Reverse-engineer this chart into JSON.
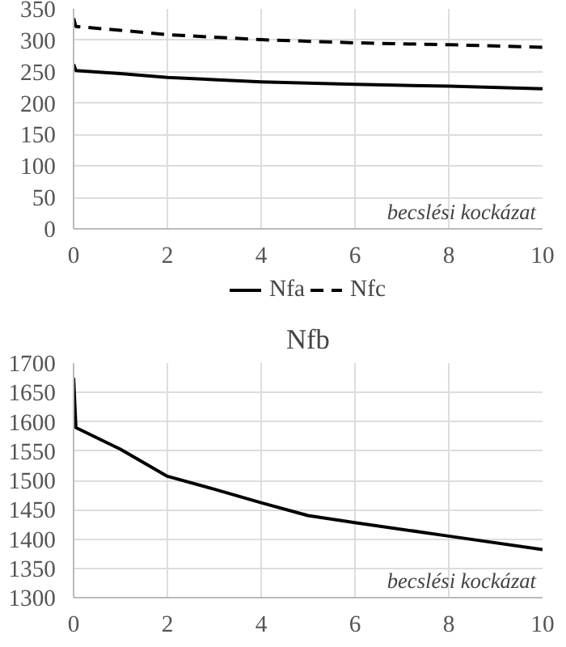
{
  "chart_data": [
    {
      "type": "line",
      "xlabel": "becslési kockázat",
      "xlim": [
        0,
        10
      ],
      "xticks": [
        0,
        2,
        4,
        6,
        8,
        10
      ],
      "ylim": [
        0,
        350
      ],
      "yticks": [
        0,
        50,
        100,
        150,
        200,
        250,
        300,
        350
      ],
      "grid": true,
      "legend": "bottom",
      "series": [
        {
          "name": "Nfa",
          "color": "#000000",
          "line_style": "solid",
          "x": [
            0,
            0.05,
            1,
            2,
            4,
            5,
            6,
            8,
            10
          ],
          "values": [
            262,
            252,
            247,
            241,
            234,
            232,
            230,
            227,
            223
          ]
        },
        {
          "name": "Nfc",
          "color": "#000000",
          "line_style": "dashed",
          "x": [
            0,
            0.05,
            1,
            2,
            4,
            6,
            8,
            10
          ],
          "values": [
            335,
            322,
            316,
            309,
            301,
            296,
            293,
            289
          ]
        }
      ]
    },
    {
      "type": "line",
      "title": "Nfb",
      "xlabel": "becslési kockázat",
      "xlim": [
        0,
        10
      ],
      "xticks": [
        0,
        2,
        4,
        6,
        8,
        10
      ],
      "ylim": [
        1300,
        1700
      ],
      "yticks": [
        1300,
        1350,
        1400,
        1450,
        1500,
        1550,
        1600,
        1650,
        1700
      ],
      "grid": true,
      "legend": false,
      "series": [
        {
          "color": "#000000",
          "line_style": "solid",
          "x": [
            0,
            0.05,
            1,
            2,
            3,
            4,
            5,
            6,
            8,
            10
          ],
          "values": [
            1675,
            1590,
            1553,
            1507,
            1485,
            1462,
            1440,
            1428,
            1405,
            1382
          ]
        }
      ]
    }
  ]
}
